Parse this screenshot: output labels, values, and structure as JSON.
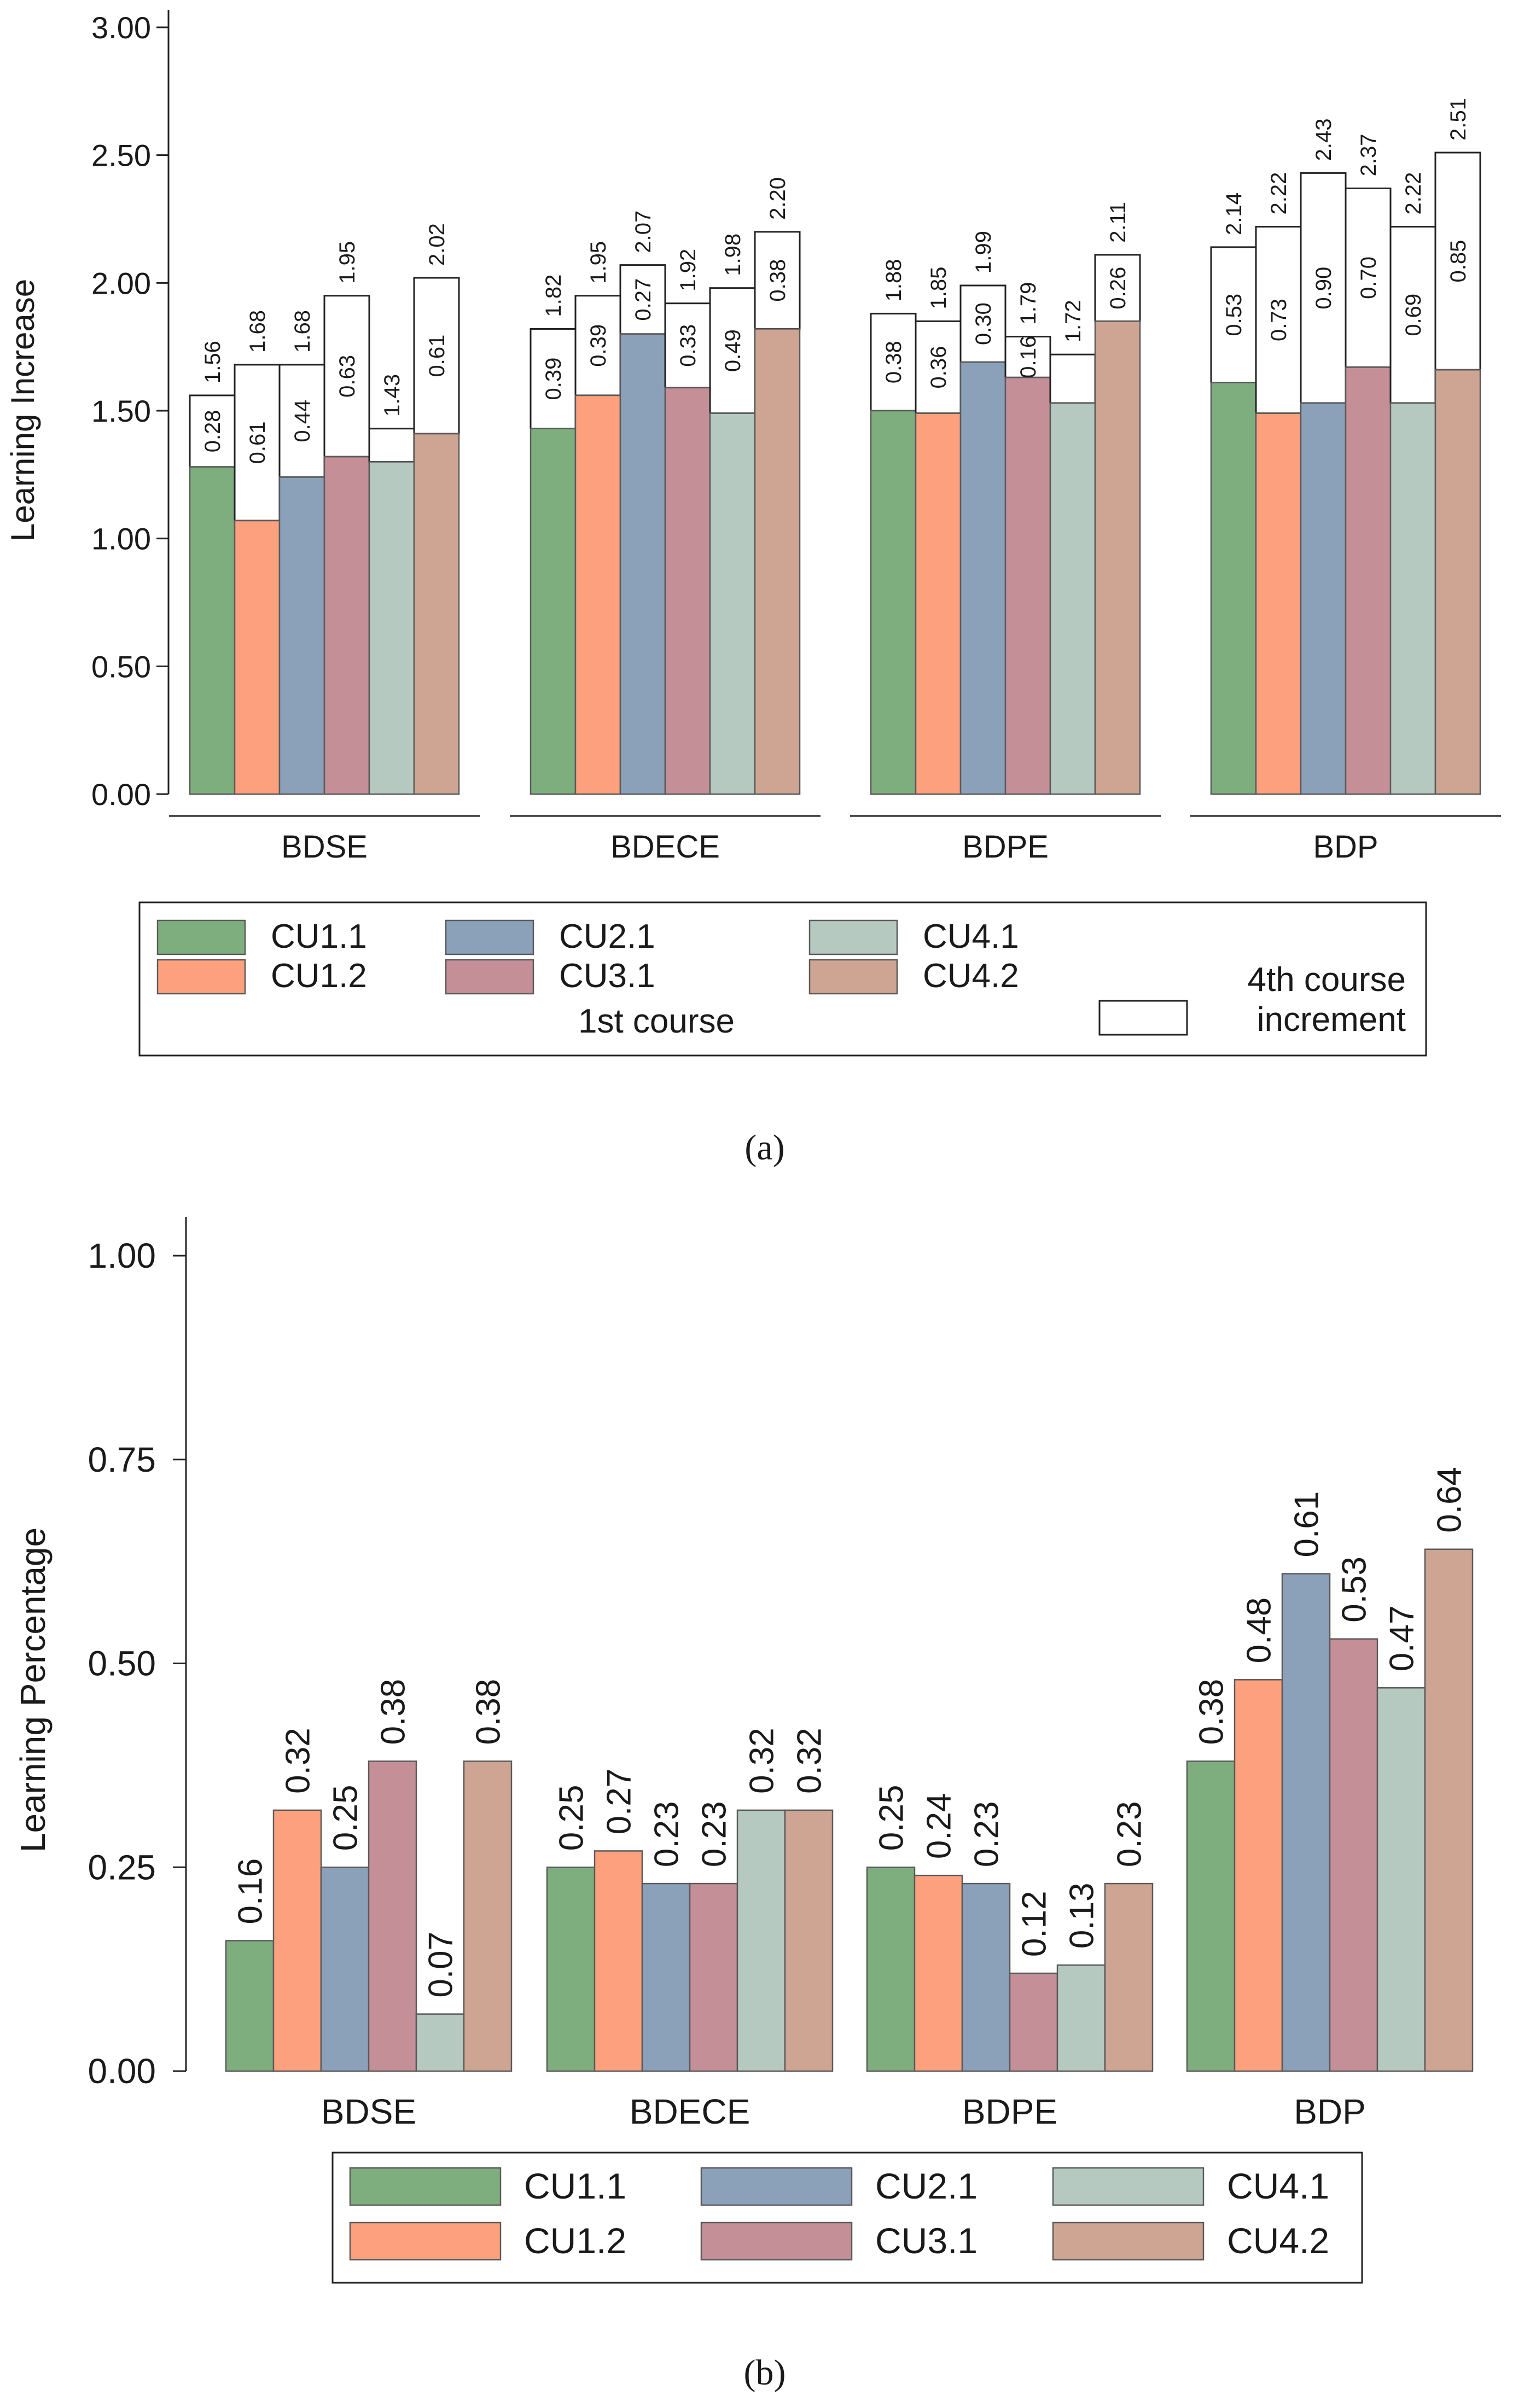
{
  "colors": {
    "CU1.1": "#7eae7e",
    "CU1.2": "#fca07d",
    "CU2.1": "#8ba1ba",
    "CU3.1": "#c58f98",
    "CU4.1": "#b5c9c0",
    "CU4.2": "#cda592",
    "increment": "#ffffff",
    "edge": "#333333"
  },
  "chart_data": [
    {
      "panel": "a",
      "caption": "(a)",
      "type": "bar",
      "stacked": true,
      "ylabel": "Learning Increase",
      "xlabel": "",
      "ylim": [
        0,
        3
      ],
      "yticks": [
        "0.00",
        "0.50",
        "1.00",
        "1.50",
        "2.00",
        "2.50",
        "3.00"
      ],
      "categories": [
        "BDSE",
        "BDECE",
        "BDPE",
        "BDP"
      ],
      "series_names": [
        "CU1.1",
        "CU1.2",
        "CU2.1",
        "CU3.1",
        "CU4.1",
        "CU4.2"
      ],
      "first_course": [
        [
          1.28,
          1.07,
          1.24,
          1.32,
          1.3,
          1.41
        ],
        [
          1.43,
          1.56,
          1.8,
          1.59,
          1.49,
          1.82
        ],
        [
          1.5,
          1.49,
          1.69,
          1.63,
          1.53,
          1.85
        ],
        [
          1.61,
          1.49,
          1.53,
          1.67,
          1.53,
          1.66
        ]
      ],
      "increment_labels": [
        [
          "0.28",
          "0.61",
          "0.44",
          "0.63",
          "",
          "0.61"
        ],
        [
          "0.39",
          "0.39",
          "0.27",
          "0.33",
          "0.49",
          "0.38"
        ],
        [
          "0.38",
          "0.36",
          "0.30",
          "0.16",
          "",
          "0.26"
        ],
        [
          "0.53",
          "0.73",
          "0.90",
          "0.70",
          "0.69",
          "0.85"
        ]
      ],
      "total_labels": [
        [
          "1.56",
          "1.68",
          "1.68",
          "1.95",
          "1.43",
          "2.02"
        ],
        [
          "1.82",
          "1.95",
          "2.07",
          "1.92",
          "1.98",
          "2.20"
        ],
        [
          "1.88",
          "1.85",
          "1.99",
          "1.79",
          "1.72",
          "2.11"
        ],
        [
          "2.14",
          "2.22",
          "2.43",
          "2.37",
          "2.22",
          "2.51"
        ]
      ],
      "legend": {
        "entries": [
          "CU1.1",
          "CU1.2",
          "CU2.1",
          "CU3.1",
          "CU4.1",
          "CU4.2"
        ],
        "group_title": "1st course",
        "increment_entry": [
          "4th course",
          "increment"
        ],
        "placement": "bottom"
      }
    },
    {
      "panel": "b",
      "caption": "(b)",
      "type": "bar",
      "ylabel": "Learning Percentage",
      "xlabel": "",
      "ylim": [
        0,
        1.0
      ],
      "yticks": [
        "0.00",
        "0.25",
        "0.50",
        "0.75",
        "1.00"
      ],
      "categories": [
        "BDSE",
        "BDECE",
        "BDPE",
        "BDP"
      ],
      "series_names": [
        "CU1.1",
        "CU1.2",
        "CU2.1",
        "CU3.1",
        "CU4.1",
        "CU4.2"
      ],
      "values": [
        [
          0.16,
          0.32,
          0.25,
          0.38,
          0.07,
          0.38
        ],
        [
          0.25,
          0.27,
          0.23,
          0.23,
          0.32,
          0.32
        ],
        [
          0.25,
          0.24,
          0.23,
          0.12,
          0.13,
          0.23
        ],
        [
          0.38,
          0.48,
          0.61,
          0.53,
          0.47,
          0.64
        ]
      ],
      "value_labels": [
        [
          "0.16",
          "0.32",
          "0.25",
          "0.38",
          "0.07",
          "0.38"
        ],
        [
          "0.25",
          "0.27",
          "0.23",
          "0.23",
          "0.32",
          "0.32"
        ],
        [
          "0.25",
          "0.24",
          "0.23",
          "0.12",
          "0.13",
          "0.23"
        ],
        [
          "0.38",
          "0.48",
          "0.61",
          "0.53",
          "0.47",
          "0.64"
        ]
      ],
      "legend": {
        "entries": [
          "CU1.1",
          "CU1.2",
          "CU2.1",
          "CU3.1",
          "CU4.1",
          "CU4.2"
        ],
        "placement": "bottom"
      }
    }
  ]
}
